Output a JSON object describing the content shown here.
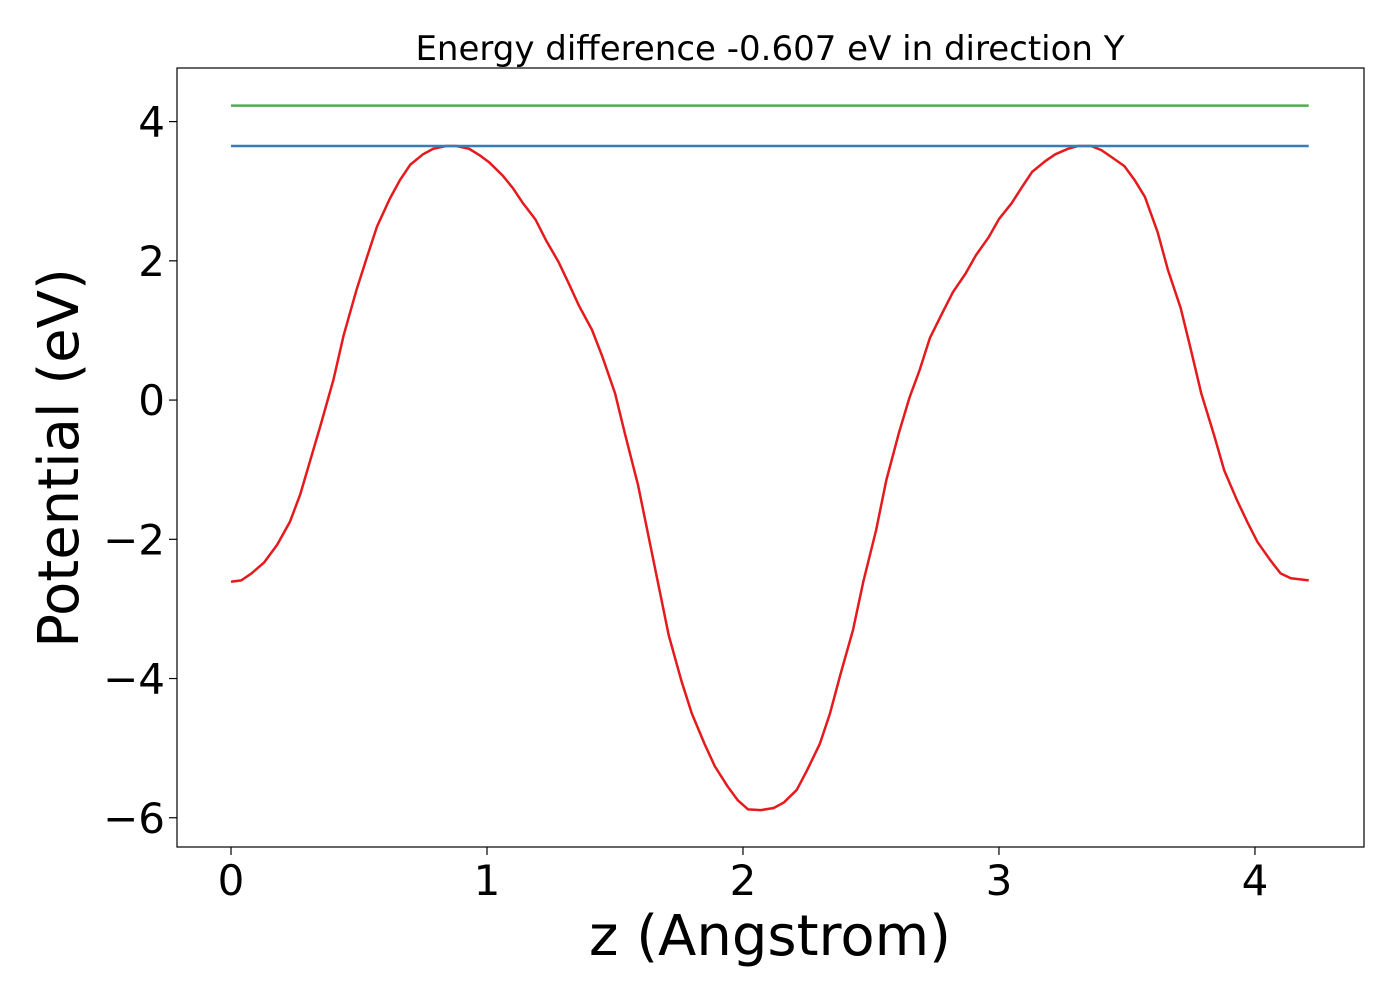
{
  "chart_data": {
    "type": "line",
    "title": "Energy difference -0.607 eV in direction Y",
    "x_label": "z (Angstrom)",
    "y_label": "Potential (eV)",
    "xlim": [
      -0.211,
      4.426
    ],
    "ylim": [
      -6.42,
      4.77
    ],
    "xticks": [
      0,
      1,
      2,
      3,
      4
    ],
    "yticks": [
      {
        "value": -6,
        "label": "−6"
      },
      {
        "value": -4,
        "label": "−4"
      },
      {
        "value": -2,
        "label": "−2"
      },
      0,
      2,
      4
    ],
    "grid": false,
    "series": [
      {
        "color": "#e41a1c",
        "x": [
          0.0,
          0.04,
          0.08,
          0.13,
          0.18,
          0.23,
          0.27,
          0.31,
          0.35,
          0.4,
          0.44,
          0.49,
          0.53,
          0.57,
          0.62,
          0.66,
          0.7,
          0.75,
          0.79,
          0.84,
          0.88,
          0.93,
          0.97,
          1.01,
          1.06,
          1.1,
          1.14,
          1.19,
          1.23,
          1.28,
          1.32,
          1.36,
          1.41,
          1.45,
          1.5,
          1.54,
          1.59,
          1.63,
          1.67,
          1.71,
          1.76,
          1.8,
          1.85,
          1.89,
          1.94,
          1.98,
          2.02,
          2.07,
          2.12,
          2.16,
          2.21,
          2.25,
          2.3,
          2.34,
          2.38,
          2.43,
          2.47,
          2.52,
          2.56,
          2.61,
          2.65,
          2.69,
          2.73,
          2.78,
          2.82,
          2.87,
          2.91,
          2.96,
          3.0,
          3.05,
          3.09,
          3.13,
          3.18,
          3.22,
          3.27,
          3.31,
          3.36,
          3.4,
          3.44,
          3.49,
          3.53,
          3.57,
          3.62,
          3.66,
          3.71,
          3.75,
          3.79,
          3.84,
          3.88,
          3.93,
          3.97,
          4.01,
          4.06,
          4.1,
          4.14,
          4.21
        ],
        "values": [
          -2.61,
          -2.59,
          -2.49,
          -2.33,
          -2.08,
          -1.75,
          -1.36,
          -0.86,
          -0.36,
          0.29,
          0.93,
          1.58,
          2.04,
          2.49,
          2.89,
          3.16,
          3.38,
          3.53,
          3.61,
          3.65,
          3.65,
          3.61,
          3.52,
          3.41,
          3.23,
          3.05,
          2.83,
          2.59,
          2.3,
          1.98,
          1.67,
          1.35,
          1.01,
          0.63,
          0.1,
          -0.5,
          -1.22,
          -1.94,
          -2.66,
          -3.38,
          -4.04,
          -4.5,
          -4.94,
          -5.26,
          -5.55,
          -5.75,
          -5.88,
          -5.89,
          -5.86,
          -5.78,
          -5.6,
          -5.32,
          -4.94,
          -4.5,
          -3.95,
          -3.3,
          -2.61,
          -1.87,
          -1.15,
          -0.46,
          0.03,
          0.43,
          0.89,
          1.26,
          1.55,
          1.82,
          2.08,
          2.34,
          2.6,
          2.83,
          3.06,
          3.28,
          3.43,
          3.53,
          3.61,
          3.65,
          3.65,
          3.59,
          3.49,
          3.36,
          3.16,
          2.92,
          2.41,
          1.87,
          1.32,
          0.72,
          0.1,
          -0.5,
          -1.01,
          -1.44,
          -1.75,
          -2.04,
          -2.3,
          -2.49,
          -2.56,
          -2.59
        ]
      },
      {
        "color": "#377eb8",
        "x": [
          0,
          4.21
        ],
        "values": [
          3.65,
          3.65
        ]
      },
      {
        "color": "#4daf4a",
        "x": [
          0,
          4.21
        ],
        "values": [
          4.23,
          4.23
        ]
      }
    ]
  }
}
